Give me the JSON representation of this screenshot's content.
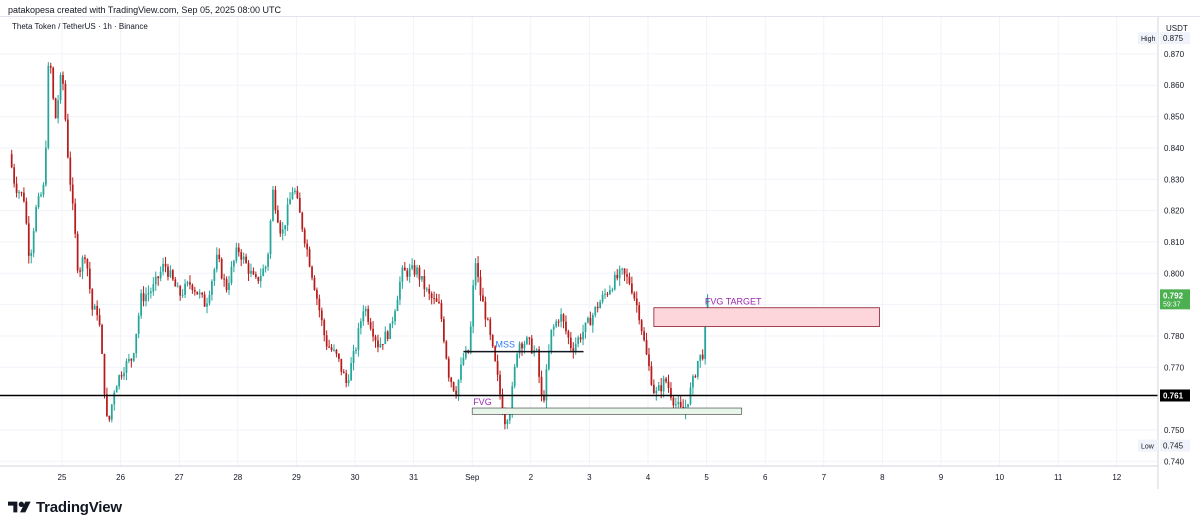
{
  "header": {
    "attribution": "patakopesa created with TradingView.com, Sep 05, 2025 08:00 UTC"
  },
  "symbol": {
    "label": "Theta Token / TetherUS · 1h · Binance"
  },
  "footer": {
    "brand": "TradingView"
  },
  "chart_data": {
    "type": "candlestick",
    "currency": "USDT",
    "y_range": [
      0.7385,
      0.8805
    ],
    "y_ticks": [
      0.74,
      0.75,
      0.76,
      0.77,
      0.78,
      0.79,
      0.8,
      0.81,
      0.82,
      0.83,
      0.84,
      0.85,
      0.86,
      0.87
    ],
    "y_tick_labels": [
      "0.740",
      "0.750",
      "0.760",
      "0.770",
      "0.780",
      "0.790",
      "0.800",
      "0.810",
      "0.820",
      "0.830",
      "0.840",
      "0.850",
      "0.860",
      "0.870"
    ],
    "x_ticks": [
      {
        "label": "25",
        "day": 0
      },
      {
        "label": "26",
        "day": 1
      },
      {
        "label": "27",
        "day": 2
      },
      {
        "label": "28",
        "day": 3
      },
      {
        "label": "29",
        "day": 4
      },
      {
        "label": "30",
        "day": 5
      },
      {
        "label": "31",
        "day": 6
      },
      {
        "label": "Sep",
        "day": 7
      },
      {
        "label": "2",
        "day": 8
      },
      {
        "label": "3",
        "day": 9
      },
      {
        "label": "4",
        "day": 10
      },
      {
        "label": "5",
        "day": 11
      },
      {
        "label": "6",
        "day": 12
      },
      {
        "label": "7",
        "day": 13
      },
      {
        "label": "8",
        "day": 14
      },
      {
        "label": "9",
        "day": 15
      },
      {
        "label": "10",
        "day": 16
      },
      {
        "label": "11",
        "day": 17
      },
      {
        "label": "12",
        "day": 18
      }
    ],
    "candle_interval": "1h",
    "anchors": [
      {
        "d": -0.9,
        "p": 0.838
      },
      {
        "d": -0.8,
        "p": 0.828
      },
      {
        "d": -0.65,
        "p": 0.824
      },
      {
        "d": -0.55,
        "p": 0.804
      },
      {
        "d": -0.45,
        "p": 0.82
      },
      {
        "d": -0.3,
        "p": 0.828
      },
      {
        "d": -0.22,
        "p": 0.872
      },
      {
        "d": -0.12,
        "p": 0.848
      },
      {
        "d": 0.0,
        "p": 0.865
      },
      {
        "d": 0.1,
        "p": 0.838
      },
      {
        "d": 0.28,
        "p": 0.8
      },
      {
        "d": 0.4,
        "p": 0.807
      },
      {
        "d": 0.52,
        "p": 0.788
      },
      {
        "d": 0.62,
        "p": 0.788
      },
      {
        "d": 0.78,
        "p": 0.75
      },
      {
        "d": 0.9,
        "p": 0.764
      },
      {
        "d": 1.05,
        "p": 0.77
      },
      {
        "d": 1.2,
        "p": 0.773
      },
      {
        "d": 1.35,
        "p": 0.792
      },
      {
        "d": 1.55,
        "p": 0.795
      },
      {
        "d": 1.75,
        "p": 0.803
      },
      {
        "d": 2.0,
        "p": 0.793
      },
      {
        "d": 2.2,
        "p": 0.797
      },
      {
        "d": 2.45,
        "p": 0.79
      },
      {
        "d": 2.65,
        "p": 0.805
      },
      {
        "d": 2.8,
        "p": 0.795
      },
      {
        "d": 3.0,
        "p": 0.808
      },
      {
        "d": 3.3,
        "p": 0.797
      },
      {
        "d": 3.5,
        "p": 0.803
      },
      {
        "d": 3.6,
        "p": 0.826
      },
      {
        "d": 3.75,
        "p": 0.812
      },
      {
        "d": 3.95,
        "p": 0.828
      },
      {
        "d": 4.1,
        "p": 0.815
      },
      {
        "d": 4.3,
        "p": 0.797
      },
      {
        "d": 4.5,
        "p": 0.778
      },
      {
        "d": 4.7,
        "p": 0.773
      },
      {
        "d": 4.85,
        "p": 0.765
      },
      {
        "d": 5.0,
        "p": 0.775
      },
      {
        "d": 5.15,
        "p": 0.79
      },
      {
        "d": 5.4,
        "p": 0.777
      },
      {
        "d": 5.6,
        "p": 0.782
      },
      {
        "d": 5.8,
        "p": 0.8
      },
      {
        "d": 6.05,
        "p": 0.801
      },
      {
        "d": 6.25,
        "p": 0.793
      },
      {
        "d": 6.45,
        "p": 0.789
      },
      {
        "d": 6.6,
        "p": 0.768
      },
      {
        "d": 6.72,
        "p": 0.762
      },
      {
        "d": 6.85,
        "p": 0.773
      },
      {
        "d": 6.95,
        "p": 0.775
      },
      {
        "d": 7.05,
        "p": 0.805
      },
      {
        "d": 7.12,
        "p": 0.795
      },
      {
        "d": 7.25,
        "p": 0.785
      },
      {
        "d": 7.4,
        "p": 0.77
      },
      {
        "d": 7.55,
        "p": 0.753
      },
      {
        "d": 7.65,
        "p": 0.757
      },
      {
        "d": 7.78,
        "p": 0.778
      },
      {
        "d": 7.95,
        "p": 0.778
      },
      {
        "d": 8.1,
        "p": 0.774
      },
      {
        "d": 8.2,
        "p": 0.757
      },
      {
        "d": 8.35,
        "p": 0.781
      },
      {
        "d": 8.5,
        "p": 0.787
      },
      {
        "d": 8.7,
        "p": 0.776
      },
      {
        "d": 8.95,
        "p": 0.783
      },
      {
        "d": 9.15,
        "p": 0.79
      },
      {
        "d": 9.4,
        "p": 0.797
      },
      {
        "d": 9.55,
        "p": 0.8
      },
      {
        "d": 9.7,
        "p": 0.797
      },
      {
        "d": 9.85,
        "p": 0.787
      },
      {
        "d": 9.98,
        "p": 0.773
      },
      {
        "d": 10.12,
        "p": 0.761
      },
      {
        "d": 10.3,
        "p": 0.766
      },
      {
        "d": 10.45,
        "p": 0.759
      },
      {
        "d": 10.6,
        "p": 0.755
      },
      {
        "d": 10.75,
        "p": 0.764
      },
      {
        "d": 10.85,
        "p": 0.772
      },
      {
        "d": 10.95,
        "p": 0.775
      },
      {
        "d": 11.0,
        "p": 0.792
      }
    ],
    "levels": [
      {
        "name": "horizontal-level",
        "price": 0.761,
        "label": "0.761"
      }
    ],
    "current_price": {
      "label": "0.792",
      "countdown": "59:37",
      "price": 0.792
    },
    "high_marker": {
      "label": "High",
      "value": "0.875",
      "price": 0.875
    },
    "low_marker": {
      "label": "Low",
      "value": "0.745",
      "price": 0.745
    },
    "annotations": {
      "mss": {
        "text": "MSS",
        "price": 0.775,
        "d1": 6.85,
        "d2": 8.9
      },
      "fvg": {
        "text": "FVG",
        "top": 0.757,
        "bottom": 0.755,
        "d1": 7.0,
        "d2": 11.6
      },
      "fvg_target": {
        "text": "FVG TARGET",
        "top": 0.789,
        "bottom": 0.783,
        "d1": 10.1,
        "d2": 13.95
      }
    },
    "colors": {
      "up": "#26a69a",
      "down": "#b71c1c",
      "level": "#000000",
      "mss": "#3179f5",
      "fvg": "#9c27b0",
      "target_fill": "#fdd6db",
      "target_border": "#8b1a2a",
      "price_tag": "#4caf50",
      "grid": "#f0f3fa",
      "axis_text": "#131722"
    }
  }
}
